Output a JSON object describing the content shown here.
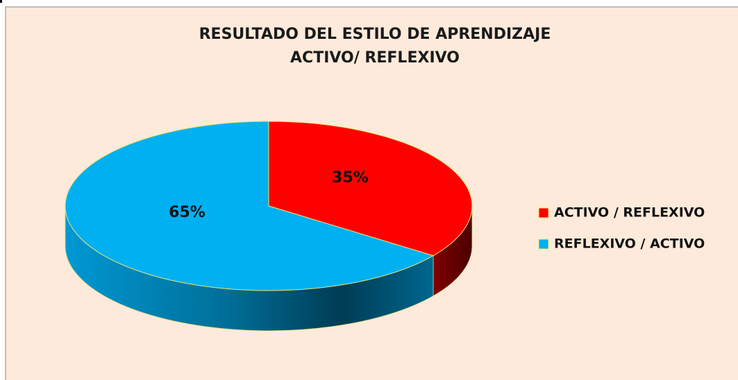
{
  "chart_data": {
    "type": "pie",
    "title": [
      "RESULTADO DEL ESTILO DE APRENDIZAJE",
      "ACTIVO/ REFLEXIVO"
    ],
    "categories": [
      "ACTIVO / REFLEXIVO",
      "REFLEXIVO / ACTIVO"
    ],
    "values": [
      35,
      65
    ],
    "value_labels": [
      "35%",
      "65%"
    ],
    "colors": [
      "#ff0000",
      "#00b0f0"
    ],
    "legend": "right"
  }
}
